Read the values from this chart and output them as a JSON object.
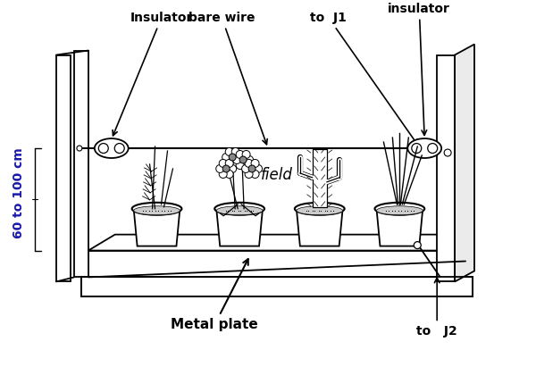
{
  "bg_color": "#ffffff",
  "text_color": "#000000",
  "blue_text_color": "#1a1aaa",
  "label_insulator_left": "Insulator",
  "label_insulator_right": "insulator",
  "label_bare_wire": "bare wire",
  "label_to_J1": "to  J1",
  "label_field": "field",
  "label_60_100": "60 to 100 cm",
  "label_metal_plate": "Metal plate",
  "label_to_J2": "to   J2",
  "lc": "black",
  "lw": 1.3
}
